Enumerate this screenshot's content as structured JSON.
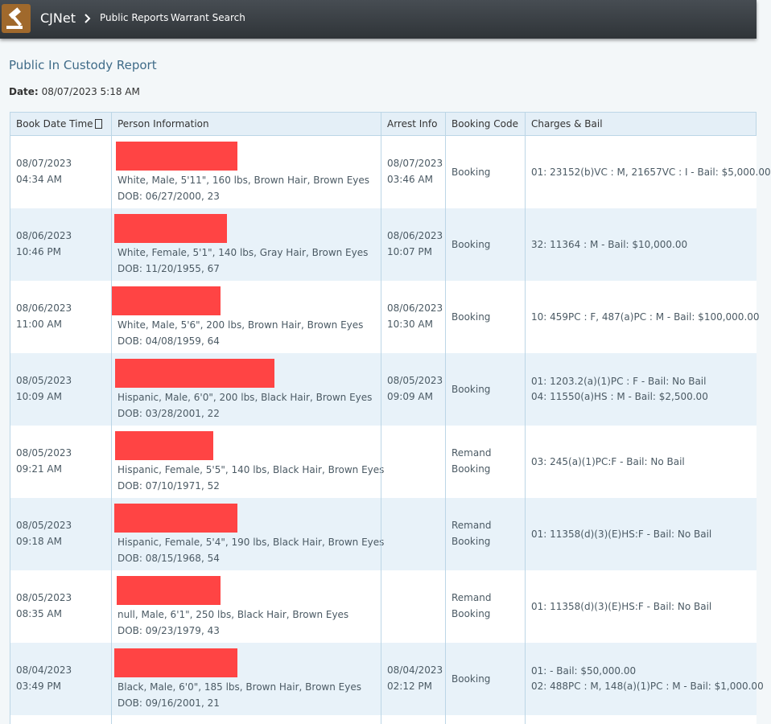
{
  "header": {
    "brand": "CJNet",
    "breadcrumbs": [
      "Public Reports",
      "Warrant Search"
    ]
  },
  "page": {
    "title": "Public In Custody Report",
    "date_label": "Date:",
    "date_value": "08/07/2023 5:18 AM"
  },
  "table": {
    "columns": [
      "Book Date Time",
      "Person Information",
      "Arrest Info",
      "Booking Code",
      "Charges & Bail"
    ],
    "rows": [
      {
        "book": [
          "08/07/2023",
          "04:34 AM"
        ],
        "person": [
          "White, Male, 5'11\", 160 lbs, Brown Hair, Brown Eyes",
          "DOB: 06/27/2000, 23"
        ],
        "arrest": [
          "08/07/2023",
          "03:46 AM"
        ],
        "booking": [
          "Booking"
        ],
        "charges": [
          "01: 23152(b)VC : M, 21657VC : I - Bail: $5,000.00"
        ]
      },
      {
        "book": [
          "08/06/2023",
          "10:46 PM"
        ],
        "person": [
          "White, Female, 5'1\", 140 lbs, Gray Hair, Brown Eyes",
          "DOB: 11/20/1955, 67"
        ],
        "arrest": [
          "08/06/2023",
          "10:07 PM"
        ],
        "booking": [
          "Booking"
        ],
        "charges": [
          "32: 11364 : M - Bail: $10,000.00"
        ]
      },
      {
        "book": [
          "08/06/2023",
          "11:00 AM"
        ],
        "person": [
          "White, Male, 5'6\", 200 lbs, Brown Hair, Brown Eyes",
          "DOB: 04/08/1959, 64"
        ],
        "arrest": [
          "08/06/2023",
          "10:30 AM"
        ],
        "booking": [
          "Booking"
        ],
        "charges": [
          "10: 459PC : F, 487(a)PC : M - Bail: $100,000.00"
        ]
      },
      {
        "book": [
          "08/05/2023",
          "10:09 AM"
        ],
        "person": [
          "Hispanic, Male, 6'0\", 200 lbs, Black Hair, Brown Eyes",
          "DOB: 03/28/2001, 22"
        ],
        "arrest": [
          "08/05/2023",
          "09:09 AM"
        ],
        "booking": [
          "Booking"
        ],
        "charges": [
          "01: 1203.2(a)(1)PC : F - Bail: No Bail",
          "04: 11550(a)HS : M - Bail: $2,500.00"
        ]
      },
      {
        "book": [
          "08/05/2023",
          "09:21 AM"
        ],
        "person": [
          "Hispanic, Female, 5'5\", 140 lbs, Black Hair, Brown Eyes",
          "DOB: 07/10/1971, 52"
        ],
        "arrest": [],
        "booking": [
          "Remand",
          "Booking"
        ],
        "charges": [
          "03: 245(a)(1)PC:F - Bail: No Bail"
        ]
      },
      {
        "book": [
          "08/05/2023",
          "09:18 AM"
        ],
        "person": [
          "Hispanic, Female, 5'4\", 190 lbs, Black Hair, Brown Eyes",
          "DOB: 08/15/1968, 54"
        ],
        "arrest": [],
        "booking": [
          "Remand",
          "Booking"
        ],
        "charges": [
          "01: 11358(d)(3)(E)HS:F - Bail: No Bail"
        ]
      },
      {
        "book": [
          "08/05/2023",
          "08:35 AM"
        ],
        "person": [
          "null, Male, 6'1\", 250 lbs, Black Hair, Brown Eyes",
          "DOB: 09/23/1979, 43"
        ],
        "arrest": [],
        "booking": [
          "Remand",
          "Booking"
        ],
        "charges": [
          "01: 11358(d)(3)(E)HS:F - Bail: No Bail"
        ]
      },
      {
        "book": [
          "08/04/2023",
          "03:49 PM"
        ],
        "person": [
          "Black, Male, 6'0\", 185 lbs, Brown Hair, Brown Eyes",
          "DOB: 09/16/2001, 21"
        ],
        "arrest": [
          "08/04/2023",
          "02:12 PM"
        ],
        "booking": [
          "Booking"
        ],
        "charges": [
          "01: - Bail: $50,000.00",
          "02: 488PC : M, 148(a)(1)PC : M - Bail: $1,000.00"
        ]
      }
    ]
  }
}
